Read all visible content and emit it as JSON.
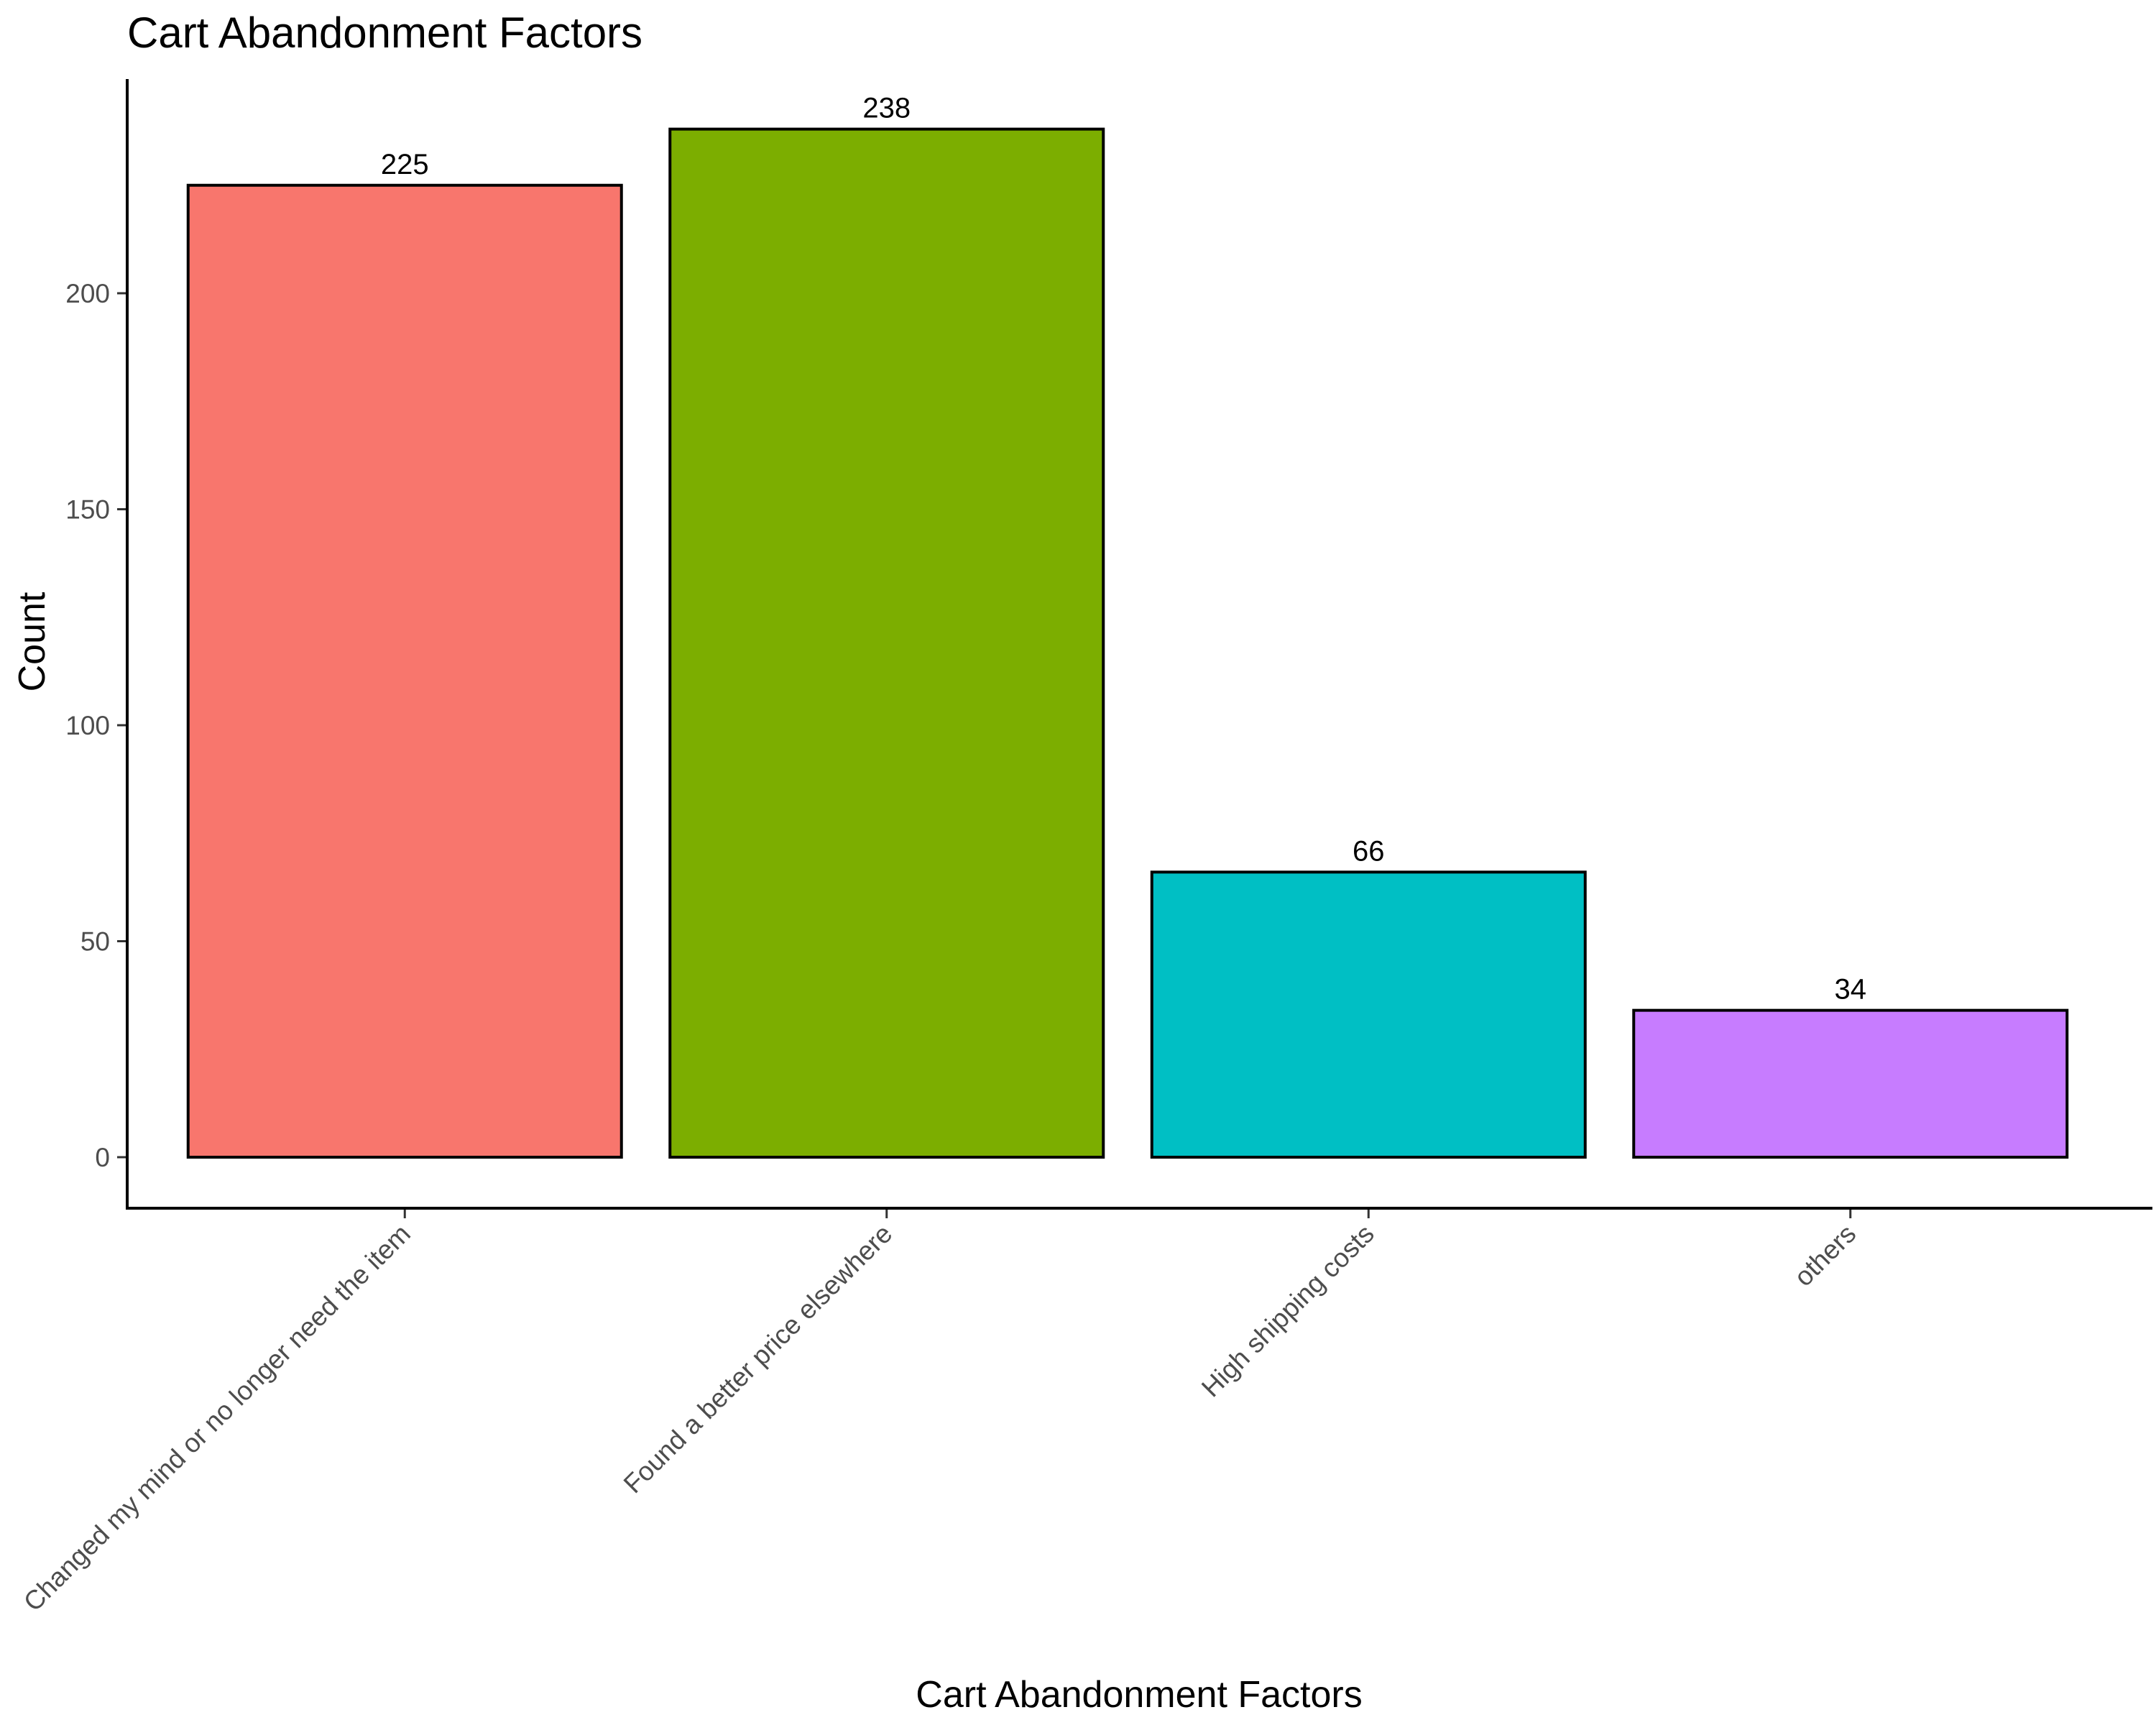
{
  "chart_data": {
    "type": "bar",
    "title": "Cart Abandonment Factors",
    "xlabel": "Cart Abandonment Factors",
    "ylabel": "Count",
    "categories": [
      "Changed my mind or no longer need the item",
      "Found a better price elsewhere",
      "High shipping costs",
      "others"
    ],
    "values": [
      225,
      238,
      66,
      34
    ],
    "data_labels": [
      "225",
      "238",
      "66",
      "34"
    ],
    "colors": [
      "#F8766D",
      "#7CAE00",
      "#00BFC4",
      "#C77CFF"
    ],
    "ylim": [
      0,
      250
    ],
    "yticks": [
      0,
      50,
      100,
      150,
      200
    ],
    "ytick_labels": [
      "0",
      "50",
      "100",
      "150",
      "200"
    ],
    "grid": false,
    "legend": "none"
  }
}
